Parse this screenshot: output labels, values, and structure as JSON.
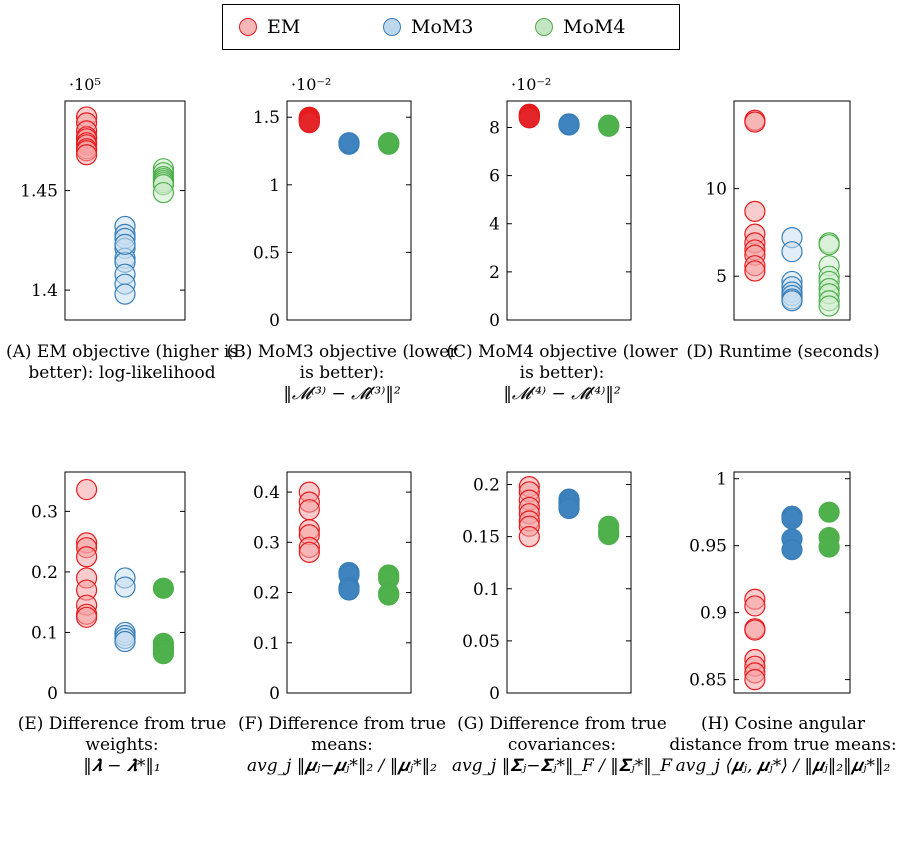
{
  "legend": [
    {
      "name": "EM",
      "stroke": "#e41a1c",
      "fill": "#f7b6b7"
    },
    {
      "name": "MoM3",
      "stroke": "#377eb8",
      "fill": "#bcd6ec"
    },
    {
      "name": "MoM4",
      "stroke": "#4daf4a",
      "fill": "#c2e6c1"
    }
  ],
  "colors": {
    "EM": {
      "stroke": "#e41a1c",
      "fill": "#f6a3a4",
      "dark": "#e4262a"
    },
    "MoM3": {
      "stroke": "#377eb8",
      "fill": "#c9dff1",
      "dark": "#3f83bf"
    },
    "MoM4": {
      "stroke": "#4daf4a",
      "fill": "#cfeccd",
      "dark": "#4fb14c"
    }
  },
  "chart_data": [
    {
      "id": "A",
      "type": "scatter",
      "scale_label": "·10⁵",
      "letter": "(A)",
      "caption": "EM objective (higher is better): log-likelihood",
      "formula": "",
      "ylim": [
        1.385,
        1.495
      ],
      "yticks": [
        1.4,
        1.45
      ],
      "ytick_labels": [
        "1.4",
        "1.45"
      ],
      "series": [
        {
          "name": "EM",
          "values": [
            1.487,
            1.484,
            1.48,
            1.477,
            1.476,
            1.474,
            1.473,
            1.471,
            1.47,
            1.468
          ]
        },
        {
          "name": "MoM3",
          "values": [
            1.432,
            1.428,
            1.426,
            1.421,
            1.416,
            1.414,
            1.408,
            1.403,
            1.398,
            1.423
          ]
        },
        {
          "name": "MoM4",
          "values": [
            1.461,
            1.459,
            1.457,
            1.456,
            1.455,
            1.454,
            1.453,
            1.449
          ]
        }
      ]
    },
    {
      "id": "B",
      "type": "scatter",
      "scale_label": "·10⁻²",
      "letter": "(B)",
      "caption": "MoM3 objective (lower is better):",
      "formula": "‖𝓜⁽³⁾ − 𝓜̂⁽³⁾‖²",
      "ylim": [
        0,
        1.62
      ],
      "yticks": [
        0,
        0.5,
        1,
        1.5
      ],
      "ytick_labels": [
        "0",
        "0.5",
        "1",
        "1.5"
      ],
      "series": [
        {
          "name": "EM",
          "values": [
            1.5,
            1.49,
            1.48,
            1.47,
            1.46
          ]
        },
        {
          "name": "MoM3",
          "values": [
            1.31,
            1.31,
            1.3,
            1.31
          ]
        },
        {
          "name": "MoM4",
          "values": [
            1.31,
            1.31,
            1.3,
            1.31
          ]
        }
      ]
    },
    {
      "id": "C",
      "type": "scatter",
      "scale_label": "·10⁻²",
      "letter": "(C)",
      "caption": "MoM4 objective (lower is better):",
      "formula": "‖𝓜⁽⁴⁾ − 𝓜̂⁽⁴⁾‖²",
      "ylim": [
        0,
        9.1
      ],
      "yticks": [
        0,
        2,
        4,
        6,
        8
      ],
      "ytick_labels": [
        "0",
        "2",
        "4",
        "6",
        "8"
      ],
      "series": [
        {
          "name": "EM",
          "values": [
            8.55,
            8.5,
            8.45,
            8.4
          ]
        },
        {
          "name": "MoM3",
          "values": [
            8.15,
            8.1,
            8.12
          ]
        },
        {
          "name": "MoM4",
          "values": [
            8.1,
            8.05,
            8.08
          ]
        }
      ]
    },
    {
      "id": "D",
      "type": "scatter",
      "scale_label": "",
      "letter": "(D)",
      "caption": "Runtime (seconds)",
      "formula": "",
      "ylim": [
        2.5,
        15
      ],
      "yticks": [
        5,
        10
      ],
      "ytick_labels": [
        "5",
        "10"
      ],
      "series": [
        {
          "name": "EM",
          "values": [
            13.9,
            13.8,
            8.7,
            7.4,
            6.9,
            6.5,
            6.2,
            5.6,
            5.3
          ]
        },
        {
          "name": "MoM3",
          "values": [
            7.2,
            6.4,
            4.7,
            4.4,
            4.1,
            3.9,
            3.7,
            3.6
          ]
        },
        {
          "name": "MoM4",
          "values": [
            6.9,
            6.8,
            5.6,
            5.0,
            4.7,
            4.3,
            4.0,
            3.6,
            3.3
          ]
        }
      ]
    },
    {
      "id": "E",
      "type": "scatter",
      "scale_label": "",
      "letter": "(E)",
      "caption": "Difference from true weights:",
      "formula": "‖𝝀 − 𝝀*‖₁",
      "ylim": [
        0,
        0.365
      ],
      "yticks": [
        0,
        0.1,
        0.2,
        0.3
      ],
      "ytick_labels": [
        "0",
        "0.1",
        "0.2",
        "0.3"
      ],
      "series": [
        {
          "name": "EM",
          "values": [
            0.336,
            0.248,
            0.24,
            0.225,
            0.19,
            0.17,
            0.145,
            0.13,
            0.125
          ]
        },
        {
          "name": "MoM3",
          "values": [
            0.19,
            0.175,
            0.1,
            0.095,
            0.09,
            0.085
          ]
        },
        {
          "name": "MoM4",
          "values": [
            0.173,
            0.082,
            0.075,
            0.07,
            0.065
          ]
        }
      ]
    },
    {
      "id": "F",
      "type": "scatter",
      "scale_label": "",
      "letter": "(F)",
      "caption": "Difference from true means:",
      "formula": "avg_j ‖𝝁ⱼ−𝝁ⱼ*‖₂ / ‖𝝁ⱼ*‖₂",
      "ylim": [
        0,
        0.44
      ],
      "yticks": [
        0,
        0.1,
        0.2,
        0.3,
        0.4
      ],
      "ytick_labels": [
        "0",
        "0.1",
        "0.2",
        "0.3",
        "0.4"
      ],
      "series": [
        {
          "name": "EM",
          "values": [
            0.4,
            0.38,
            0.365,
            0.325,
            0.315,
            0.29,
            0.28
          ]
        },
        {
          "name": "MoM3",
          "values": [
            0.24,
            0.235,
            0.21,
            0.205
          ]
        },
        {
          "name": "MoM4",
          "values": [
            0.235,
            0.228,
            0.198,
            0.195
          ]
        }
      ]
    },
    {
      "id": "G",
      "type": "scatter",
      "scale_label": "",
      "letter": "(G)",
      "caption": "Difference from true covariances:",
      "formula": "avg_j ‖𝚺ⱼ−𝚺ⱼ*‖_F / ‖𝚺ⱼ*‖_F",
      "ylim": [
        0,
        0.212
      ],
      "yticks": [
        0,
        0.05,
        0.1,
        0.15,
        0.2
      ],
      "ytick_labels": [
        "0",
        "0.05",
        "0.1",
        "0.15",
        "0.2"
      ],
      "series": [
        {
          "name": "EM",
          "values": [
            0.198,
            0.193,
            0.185,
            0.178,
            0.172,
            0.165,
            0.16,
            0.15
          ]
        },
        {
          "name": "MoM3",
          "values": [
            0.186,
            0.183,
            0.18,
            0.177
          ]
        },
        {
          "name": "MoM4",
          "values": [
            0.16,
            0.155,
            0.152
          ]
        }
      ]
    },
    {
      "id": "H",
      "type": "scatter",
      "scale_label": "",
      "letter": "(H)",
      "caption": "Cosine angular distance from true means:",
      "formula": "avg_j ⟨𝝁ⱼ, 𝝁ⱼ*⟩ / ‖𝝁ⱼ‖₂‖𝝁ⱼ*‖₂",
      "ylim": [
        0.84,
        1.005
      ],
      "yticks": [
        0.85,
        0.9,
        0.95,
        1
      ],
      "ytick_labels": [
        "0.85",
        "0.9",
        "0.95",
        "1"
      ],
      "series": [
        {
          "name": "EM",
          "values": [
            0.91,
            0.905,
            0.888,
            0.887,
            0.865,
            0.86,
            0.855,
            0.85
          ]
        },
        {
          "name": "MoM3",
          "values": [
            0.972,
            0.97,
            0.955,
            0.947
          ]
        },
        {
          "name": "MoM4",
          "values": [
            0.975,
            0.956,
            0.949
          ]
        }
      ]
    }
  ]
}
